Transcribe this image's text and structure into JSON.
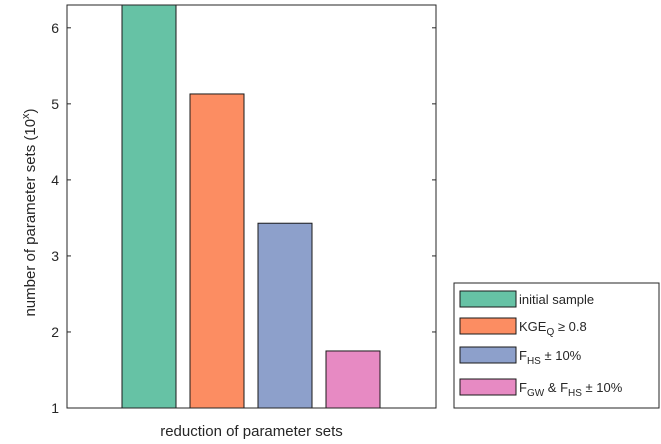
{
  "chart_data": {
    "type": "bar",
    "title": "",
    "xlabel": "reduction of parameter sets",
    "ylabel": "number of parameter sets (10",
    "ylabel_sup": "x",
    "ylabel_end": ")",
    "ylim": [
      1,
      6.3
    ],
    "yticks": [
      "1",
      "2",
      "3",
      "4",
      "5",
      "6"
    ],
    "grid": false,
    "legend_position": "bottom-right",
    "series": [
      {
        "value": 6.3,
        "color": "#66c2a5"
      },
      {
        "value": 5.13,
        "color": "#fc8d62"
      },
      {
        "value": 3.43,
        "color": "#8da0cb"
      },
      {
        "value": 1.75,
        "color": "#e78ac3"
      }
    ],
    "legend": [
      {
        "main": "initial sample"
      },
      {
        "main": "KGE",
        "sub": "Q",
        "rest": " ≥ 0.8"
      },
      {
        "main": "F",
        "sub": "HS",
        "rest": " ± 10%"
      },
      {
        "main": "F",
        "sub": "GW",
        "mid": " & F",
        "sub2": "HS",
        "rest": " ± 10%"
      }
    ]
  }
}
